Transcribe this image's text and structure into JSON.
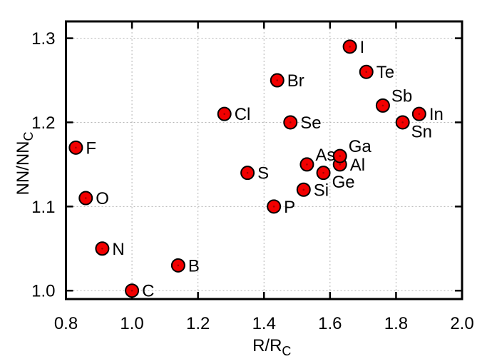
{
  "figure": {
    "background": "#ffffff",
    "plot_border_color": "#000000",
    "grid_color": "#b4b4b4",
    "text_color": "#000000"
  },
  "chart_data": {
    "type": "scatter",
    "title": "",
    "xlabel": {
      "base": "R/R",
      "sub": "C"
    },
    "ylabel": {
      "base": "NN/NN",
      "sub": "C"
    },
    "xlim": [
      0.8,
      2.0
    ],
    "ylim": [
      0.99,
      1.32
    ],
    "grid": true,
    "legend": false,
    "xticks": {
      "values": [
        0.8,
        1.0,
        1.2,
        1.4,
        1.6,
        1.8,
        2.0
      ],
      "labels": [
        "0.8",
        "1.0",
        "1.2",
        "1.4",
        "1.6",
        "1.8",
        "2.0"
      ]
    },
    "yticks": {
      "values": [
        1.0,
        1.1,
        1.2,
        1.3
      ],
      "labels": [
        "1.0",
        "1.1",
        "1.2",
        "1.3"
      ]
    },
    "marker": {
      "shape": "circle",
      "fill": "#f20000",
      "stroke": "#000000",
      "center_dot": "#a00000"
    },
    "points": [
      {
        "label": "B",
        "x": 1.14,
        "y": 1.03,
        "label_pos": "right"
      },
      {
        "label": "C",
        "x": 1.0,
        "y": 1.0,
        "label_pos": "right"
      },
      {
        "label": "N",
        "x": 0.91,
        "y": 1.05,
        "label_pos": "right"
      },
      {
        "label": "O",
        "x": 0.86,
        "y": 1.11,
        "label_pos": "right"
      },
      {
        "label": "F",
        "x": 0.83,
        "y": 1.17,
        "label_pos": "right"
      },
      {
        "label": "Al",
        "x": 1.63,
        "y": 1.15,
        "label_pos": "right"
      },
      {
        "label": "Si",
        "x": 1.52,
        "y": 1.12,
        "label_pos": "right"
      },
      {
        "label": "P",
        "x": 1.43,
        "y": 1.1,
        "label_pos": "right"
      },
      {
        "label": "S",
        "x": 1.35,
        "y": 1.14,
        "label_pos": "right"
      },
      {
        "label": "Cl",
        "x": 1.28,
        "y": 1.21,
        "label_pos": "right"
      },
      {
        "label": "Ga",
        "x": 1.63,
        "y": 1.16,
        "label_pos": "above-right"
      },
      {
        "label": "Ge",
        "x": 1.58,
        "y": 1.14,
        "label_pos": "below-right"
      },
      {
        "label": "As",
        "x": 1.53,
        "y": 1.15,
        "label_pos": "above-right"
      },
      {
        "label": "Se",
        "x": 1.48,
        "y": 1.2,
        "label_pos": "right"
      },
      {
        "label": "Br",
        "x": 1.44,
        "y": 1.25,
        "label_pos": "right"
      },
      {
        "label": "In",
        "x": 1.87,
        "y": 1.21,
        "label_pos": "right"
      },
      {
        "label": "Sn",
        "x": 1.82,
        "y": 1.2,
        "label_pos": "below-right"
      },
      {
        "label": "Sb",
        "x": 1.76,
        "y": 1.22,
        "label_pos": "above-right"
      },
      {
        "label": "Te",
        "x": 1.71,
        "y": 1.26,
        "label_pos": "right"
      },
      {
        "label": "I",
        "x": 1.66,
        "y": 1.29,
        "label_pos": "right"
      }
    ]
  }
}
